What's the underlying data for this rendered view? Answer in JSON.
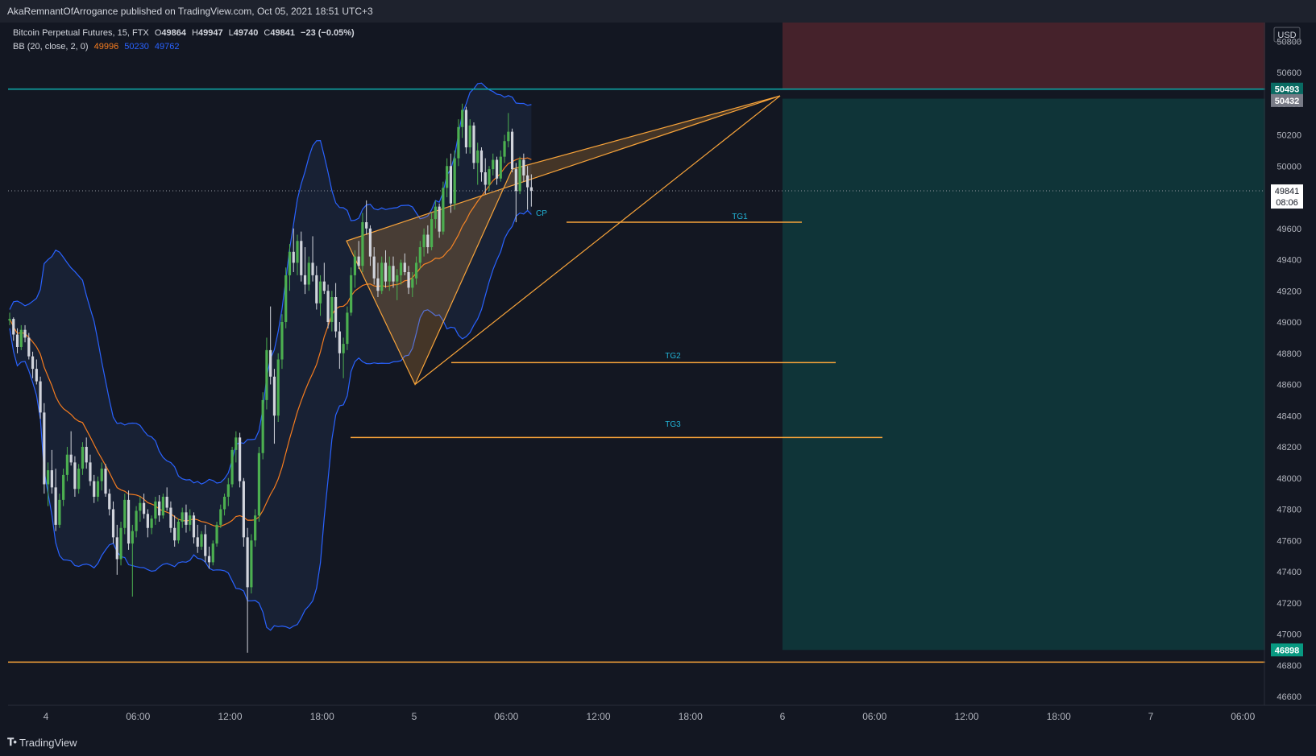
{
  "header": {
    "author": "AkaRemnantOfArrogance",
    "published_text": "published on TradingView.com, Oct 05, 2021 18:51 UTC+3"
  },
  "legend": {
    "symbol": "Bitcoin Perpetual Futures, 15, FTX",
    "open_label": "O",
    "open": "49864",
    "high_label": "H",
    "high": "49947",
    "low_label": "L",
    "low": "49740",
    "close_label": "C",
    "close": "49841",
    "change": "−23 (−0.05%)",
    "indicator": "BB (20, close, 2, 0)",
    "bb_basis": "49996",
    "bb_upper": "50230",
    "bb_lower": "49762"
  },
  "footer": {
    "brand": "TradingView"
  },
  "colors": {
    "background": "#131722",
    "up": "#26a69a",
    "down": "#d1d4dc",
    "bb_basis": "#f57c1f",
    "bb_band": "#2962ff",
    "drawing": "#f7a33a",
    "label": "#22b3d6",
    "teal_line": "#0fa3a3",
    "profit_zone": "#0f3438",
    "stop_zone": "#45222b"
  },
  "chart_data": {
    "type": "candlestick",
    "currency": "USD",
    "ylim": [
      46500,
      50850
    ],
    "y_ticks": [
      46600,
      46800,
      47000,
      47200,
      47400,
      47600,
      47800,
      48000,
      48200,
      48400,
      48600,
      48800,
      49000,
      49200,
      49400,
      49600,
      49800,
      50000,
      50200,
      50400,
      50600,
      50800
    ],
    "x_ticks": [
      "4",
      "06:00",
      "12:00",
      "18:00",
      "5",
      "06:00",
      "12:00",
      "18:00",
      "6",
      "06:00",
      "12:00",
      "18:00",
      "7",
      "06:00"
    ],
    "price_labels": {
      "last": "49841",
      "countdown": "08:06",
      "target_top": "50493",
      "stop": "50432",
      "bottom": "46898"
    },
    "annotations": [
      {
        "text": "CP",
        "price": 49690
      },
      {
        "text": "TG1",
        "price": 49600
      },
      {
        "text": "TG2",
        "price": 48780
      },
      {
        "text": "TG3",
        "price": 48340
      }
    ],
    "horizontal_lines": [
      {
        "name": "TG1",
        "price": 49640
      },
      {
        "name": "TG2",
        "price": 48740
      },
      {
        "name": "TG3",
        "price": 48260
      },
      {
        "name": "support",
        "price": 46820
      },
      {
        "name": "resistance",
        "price": 50493
      }
    ],
    "candles": [
      [
        49010,
        49060,
        48980,
        49020
      ],
      [
        49020,
        49030,
        48880,
        48920
      ],
      [
        48920,
        48960,
        48800,
        48840
      ],
      [
        48840,
        48980,
        48820,
        48950
      ],
      [
        48950,
        48980,
        48870,
        48900
      ],
      [
        48900,
        48930,
        48760,
        48780
      ],
      [
        48780,
        48810,
        48640,
        48700
      ],
      [
        48700,
        48760,
        48600,
        48620
      ],
      [
        48620,
        48650,
        48380,
        48420
      ],
      [
        48420,
        48480,
        47900,
        47960
      ],
      [
        47960,
        48100,
        47820,
        48050
      ],
      [
        48050,
        48180,
        47900,
        47940
      ],
      [
        47940,
        48060,
        47660,
        47700
      ],
      [
        47700,
        47900,
        47680,
        47860
      ],
      [
        47860,
        48060,
        47820,
        48020
      ],
      [
        48020,
        48200,
        47980,
        48150
      ],
      [
        48150,
        48300,
        48080,
        48100
      ],
      [
        48100,
        48140,
        47880,
        47930
      ],
      [
        47930,
        48090,
        47900,
        48060
      ],
      [
        48060,
        48230,
        48020,
        48200
      ],
      [
        48200,
        48260,
        48060,
        48100
      ],
      [
        48100,
        48150,
        47950,
        47980
      ],
      [
        47980,
        48020,
        47840,
        47880
      ],
      [
        47880,
        48010,
        47850,
        47980
      ],
      [
        47980,
        48100,
        47920,
        48060
      ],
      [
        48060,
        48090,
        47880,
        47900
      ],
      [
        47900,
        47930,
        47760,
        47800
      ],
      [
        47800,
        47850,
        47580,
        47620
      ],
      [
        47620,
        47700,
        47380,
        47480
      ],
      [
        47480,
        47720,
        47440,
        47680
      ],
      [
        47680,
        47900,
        47640,
        47860
      ],
      [
        47860,
        47920,
        47540,
        47580
      ],
      [
        47580,
        47700,
        47240,
        47660
      ],
      [
        47660,
        47820,
        47620,
        47790
      ],
      [
        47790,
        47880,
        47720,
        47840
      ],
      [
        47840,
        47900,
        47740,
        47770
      ],
      [
        47770,
        47800,
        47620,
        47680
      ],
      [
        47680,
        47760,
        47640,
        47740
      ],
      [
        47740,
        47880,
        47700,
        47850
      ],
      [
        47850,
        47890,
        47720,
        47760
      ],
      [
        47760,
        47900,
        47740,
        47880
      ],
      [
        47880,
        47940,
        47790,
        47810
      ],
      [
        47810,
        47850,
        47650,
        47680
      ],
      [
        47680,
        47760,
        47560,
        47600
      ],
      [
        47600,
        47740,
        47580,
        47720
      ],
      [
        47720,
        47810,
        47680,
        47780
      ],
      [
        47780,
        47830,
        47650,
        47700
      ],
      [
        47700,
        47800,
        47660,
        47760
      ],
      [
        47760,
        47780,
        47580,
        47620
      ],
      [
        47620,
        47700,
        47520,
        47560
      ],
      [
        47560,
        47660,
        47540,
        47640
      ],
      [
        47640,
        47700,
        47460,
        47500
      ],
      [
        47500,
        47560,
        47420,
        47460
      ],
      [
        47460,
        47600,
        47440,
        47580
      ],
      [
        47580,
        47720,
        47560,
        47700
      ],
      [
        47700,
        47830,
        47680,
        47800
      ],
      [
        47800,
        47900,
        47760,
        47880
      ],
      [
        47880,
        48000,
        47820,
        47960
      ],
      [
        47960,
        48200,
        47940,
        48180
      ],
      [
        48180,
        48300,
        48100,
        48260
      ],
      [
        48260,
        48290,
        47940,
        47980
      ],
      [
        47980,
        48000,
        47560,
        47620
      ],
      [
        47620,
        47680,
        46880,
        47300
      ],
      [
        47300,
        47640,
        47260,
        47600
      ],
      [
        47600,
        47800,
        47560,
        47760
      ],
      [
        47760,
        48200,
        47720,
        48160
      ],
      [
        48160,
        48550,
        48120,
        48500
      ],
      [
        48500,
        48900,
        48440,
        48820
      ],
      [
        48820,
        49100,
        48600,
        48650
      ],
      [
        48650,
        48700,
        48220,
        48400
      ],
      [
        48400,
        48800,
        48360,
        48760
      ],
      [
        48760,
        49050,
        48700,
        49000
      ],
      [
        49000,
        49350,
        48960,
        49300
      ],
      [
        49300,
        49500,
        49200,
        49450
      ],
      [
        49450,
        49600,
        49320,
        49380
      ],
      [
        49380,
        49560,
        49300,
        49520
      ],
      [
        49520,
        49580,
        49260,
        49300
      ],
      [
        49300,
        49480,
        49180,
        49240
      ],
      [
        49240,
        49420,
        49200,
        49380
      ],
      [
        49380,
        49550,
        49260,
        49300
      ],
      [
        49300,
        49360,
        49080,
        49120
      ],
      [
        49120,
        49300,
        49040,
        49260
      ],
      [
        49260,
        49380,
        49180,
        49200
      ],
      [
        49200,
        49240,
        48960,
        49000
      ],
      [
        49000,
        49200,
        48940,
        49160
      ],
      [
        49160,
        49250,
        48900,
        48940
      ],
      [
        48940,
        49000,
        48700,
        48800
      ],
      [
        48800,
        48900,
        48640,
        48860
      ],
      [
        48860,
        49100,
        48820,
        49060
      ],
      [
        49060,
        49350,
        49040,
        49300
      ],
      [
        49300,
        49460,
        49220,
        49420
      ],
      [
        49420,
        49520,
        49340,
        49360
      ],
      [
        49360,
        49700,
        49320,
        49640
      ],
      [
        49640,
        49780,
        49560,
        49600
      ],
      [
        49600,
        49620,
        49360,
        49420
      ],
      [
        49420,
        49480,
        49240,
        49280
      ],
      [
        49280,
        49380,
        49160,
        49200
      ],
      [
        49200,
        49420,
        49180,
        49380
      ],
      [
        49380,
        49460,
        49220,
        49260
      ],
      [
        49260,
        49420,
        49200,
        49360
      ],
      [
        49360,
        49420,
        49220,
        49260
      ],
      [
        49260,
        49340,
        49140,
        49300
      ],
      [
        49300,
        49400,
        49240,
        49380
      ],
      [
        49380,
        49440,
        49300,
        49320
      ],
      [
        49320,
        49360,
        49180,
        49220
      ],
      [
        49220,
        49320,
        49160,
        49280
      ],
      [
        49280,
        49420,
        49240,
        49380
      ],
      [
        49380,
        49520,
        49340,
        49480
      ],
      [
        49480,
        49600,
        49420,
        49560
      ],
      [
        49560,
        49620,
        49440,
        49480
      ],
      [
        49480,
        49700,
        49460,
        49660
      ],
      [
        49660,
        49780,
        49600,
        49740
      ],
      [
        49740,
        49760,
        49540,
        49580
      ],
      [
        49580,
        49900,
        49560,
        49860
      ],
      [
        49860,
        50050,
        49800,
        50000
      ],
      [
        50000,
        50080,
        49700,
        49760
      ],
      [
        49760,
        50100,
        49720,
        50050
      ],
      [
        50050,
        50300,
        50000,
        50250
      ],
      [
        50250,
        50400,
        50180,
        50360
      ],
      [
        50360,
        50380,
        50080,
        50120
      ],
      [
        50120,
        50300,
        50080,
        50260
      ],
      [
        50260,
        50280,
        49980,
        50020
      ],
      [
        50020,
        50150,
        49880,
        50100
      ],
      [
        50100,
        50120,
        49900,
        49960
      ],
      [
        49960,
        50050,
        49820,
        49880
      ],
      [
        49880,
        50000,
        49840,
        49980
      ],
      [
        49980,
        50080,
        49940,
        50040
      ],
      [
        50040,
        50060,
        49880,
        49920
      ],
      [
        49920,
        50100,
        49900,
        50060
      ],
      [
        50060,
        50200,
        50020,
        50160
      ],
      [
        50160,
        50340,
        50120,
        50220
      ],
      [
        50220,
        50240,
        49960,
        49980
      ],
      [
        49980,
        50020,
        49640,
        49840
      ],
      [
        49840,
        50060,
        49820,
        50040
      ],
      [
        50040,
        50080,
        49900,
        49940
      ],
      [
        49940,
        50000,
        49720,
        49864
      ],
      [
        49864,
        49947,
        49740,
        49841
      ]
    ]
  }
}
